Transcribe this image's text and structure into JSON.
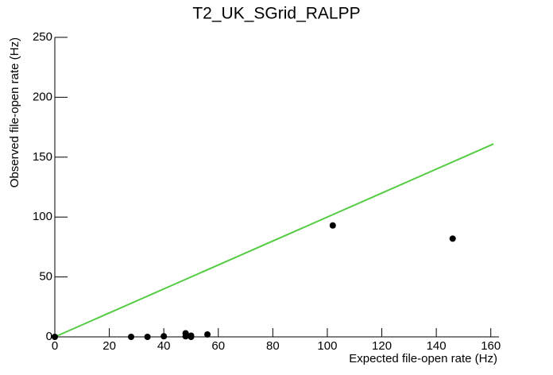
{
  "chart_data": {
    "type": "scatter",
    "title": "T2_UK_SGrid_RALPP",
    "x_label": "Expected file-open rate (Hz)",
    "y_label": "Observed file-open rate (Hz)",
    "series": [
      {
        "color": "#000000",
        "x": [
          0,
          28,
          34,
          40,
          48,
          48,
          50,
          50,
          56,
          102,
          146
        ],
        "values": [
          0,
          0,
          0,
          0.5,
          3,
          0.5,
          1,
          0,
          2,
          93,
          82
        ]
      }
    ],
    "reference_line": {
      "color": "#55cc44",
      "x": [
        0,
        161
      ],
      "values": [
        0,
        161
      ]
    },
    "xlim": [
      0,
      163
    ],
    "xticks": [
      0,
      20,
      40,
      60,
      80,
      100,
      120,
      140,
      160
    ],
    "ylim": [
      0,
      250
    ],
    "yticks": [
      0,
      50,
      100,
      150,
      200,
      250
    ]
  }
}
